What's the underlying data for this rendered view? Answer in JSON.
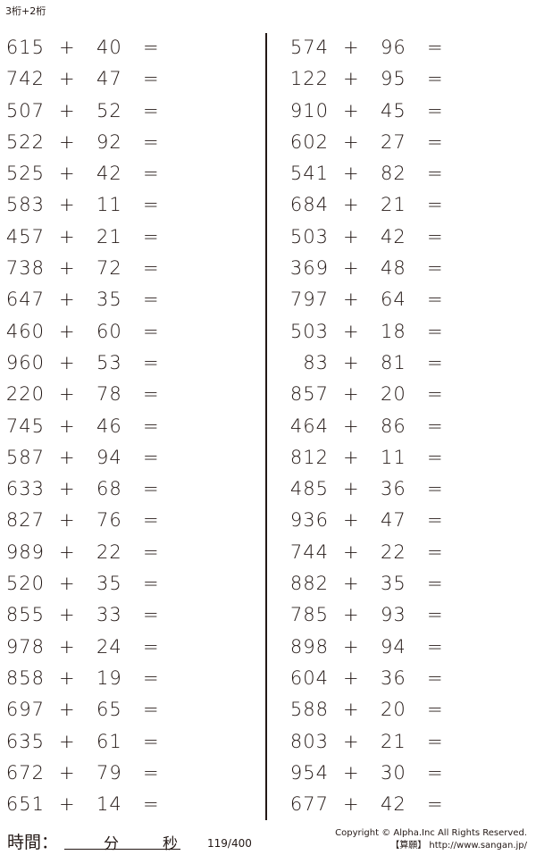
{
  "title": "3桁+2桁",
  "operator": "+",
  "equals": "=",
  "left": [
    [
      "615",
      "40"
    ],
    [
      "742",
      "47"
    ],
    [
      "507",
      "52"
    ],
    [
      "522",
      "92"
    ],
    [
      "525",
      "42"
    ],
    [
      "583",
      "11"
    ],
    [
      "457",
      "21"
    ],
    [
      "738",
      "72"
    ],
    [
      "647",
      "35"
    ],
    [
      "460",
      "60"
    ],
    [
      "960",
      "53"
    ],
    [
      "220",
      "78"
    ],
    [
      "745",
      "46"
    ],
    [
      "587",
      "94"
    ],
    [
      "633",
      "68"
    ],
    [
      "827",
      "76"
    ],
    [
      "989",
      "22"
    ],
    [
      "520",
      "35"
    ],
    [
      "855",
      "33"
    ],
    [
      "978",
      "24"
    ],
    [
      "858",
      "19"
    ],
    [
      "697",
      "65"
    ],
    [
      "635",
      "61"
    ],
    [
      "672",
      "79"
    ],
    [
      "651",
      "14"
    ]
  ],
  "right": [
    [
      "574",
      "96"
    ],
    [
      "122",
      "95"
    ],
    [
      "910",
      "45"
    ],
    [
      "602",
      "27"
    ],
    [
      "541",
      "82"
    ],
    [
      "684",
      "21"
    ],
    [
      "503",
      "42"
    ],
    [
      "369",
      "48"
    ],
    [
      "797",
      "64"
    ],
    [
      "503",
      "18"
    ],
    [
      "83",
      "81"
    ],
    [
      "857",
      "20"
    ],
    [
      "464",
      "86"
    ],
    [
      "812",
      "11"
    ],
    [
      "485",
      "36"
    ],
    [
      "936",
      "47"
    ],
    [
      "744",
      "22"
    ],
    [
      "882",
      "35"
    ],
    [
      "785",
      "93"
    ],
    [
      "898",
      "94"
    ],
    [
      "604",
      "36"
    ],
    [
      "588",
      "20"
    ],
    [
      "803",
      "21"
    ],
    [
      "954",
      "30"
    ],
    [
      "677",
      "42"
    ]
  ],
  "footer": {
    "time_label": "時間：",
    "minutes_label": "分",
    "seconds_label": "秒",
    "page": "119/400",
    "copyright": "Copyright © Alpha.Inc All Rights Reserved.",
    "site": "【算願】 http://www.sangan.jp/"
  }
}
